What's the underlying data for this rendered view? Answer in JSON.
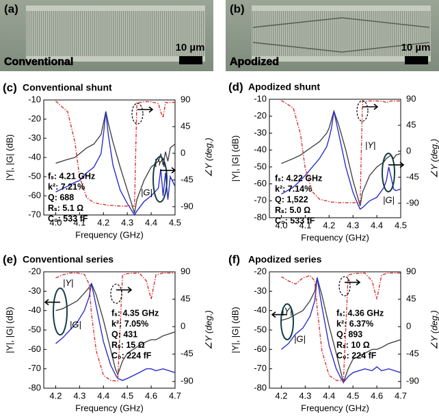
{
  "micrographs": [
    {
      "label": "(a)",
      "caption": "Conventional",
      "caption_color": "#ffffff",
      "scale_bar": "10 µm"
    },
    {
      "label": "(b)",
      "caption": "Apodized",
      "caption_color": "#e07a2a",
      "scale_bar": "10 µm"
    }
  ],
  "chart_data": [
    {
      "type": "line",
      "panel": "(c)",
      "title": "Conventional shunt",
      "title_color": "#000000",
      "xlabel": "Frequency (GHz)",
      "ylabel": "|Y|, |G| (dB)",
      "y2label": "∠Y (deg.)",
      "annotations": [
        "fₛ: 4.21 GHz",
        "k²: 7.21%",
        "Q: 688",
        "Rₛ: 5.1 Ω",
        "C₀: 533 fF"
      ],
      "annotation_color": "#000000",
      "xlim": [
        3.95,
        4.5
      ],
      "xticks": [
        {
          "value": 4,
          "label": "4.0"
        },
        4.1,
        4.2,
        4.3,
        4.4,
        4.5
      ],
      "ylim": [
        -70,
        -10
      ],
      "yticks": [
        -10,
        -20,
        -30,
        -40,
        -50,
        -60,
        -70
      ],
      "y2lim": [
        -104,
        90
      ],
      "y2ticks": [
        90,
        45,
        0,
        -45,
        -90
      ],
      "x": [
        4.0,
        4.05,
        4.08,
        4.1,
        4.13,
        4.16,
        4.19,
        4.2,
        4.21,
        4.22,
        4.24,
        4.27,
        4.3,
        4.32,
        4.33,
        4.34,
        4.37,
        4.4,
        4.43,
        4.44,
        4.45,
        4.46,
        4.47,
        4.48,
        4.5
      ],
      "series": [
        {
          "name": "|Y|",
          "color": "#444444",
          "values": [
            -43,
            -41,
            -40,
            -38,
            -35,
            -33,
            -28,
            -22,
            -16,
            -22,
            -32,
            -45,
            -57,
            -65,
            -69,
            -62,
            -52,
            -45,
            -42,
            -38,
            -44,
            -37,
            -42,
            -35,
            -33
          ]
        },
        {
          "name": "|G|",
          "color": "#2b2bcc",
          "values": [
            -58,
            -55,
            -53,
            -52,
            -48,
            -45,
            -38,
            -28,
            -16,
            -28,
            -44,
            -57,
            -64,
            -68,
            -70,
            -68,
            -63,
            -60,
            -56,
            -46,
            -60,
            -48,
            -62,
            -50,
            -55
          ]
        },
        {
          "color": "#d93030",
          "axis": "y2",
          "values": [
            88,
            70,
            20,
            -40,
            -75,
            -83,
            -86,
            -86,
            -87,
            -88,
            -88,
            -89,
            -89,
            -89,
            -89,
            85,
            87,
            87,
            84,
            70,
            60,
            86,
            85,
            86,
            86
          ]
        }
      ]
    },
    {
      "type": "line",
      "panel": "(d)",
      "title": "Apodized shunt",
      "title_color": "#c8642a",
      "xlabel": "Frequency (GHz)",
      "ylabel": "|Y|, |G| (dB)",
      "y2label": "∠Y (deg.)",
      "annotations": [
        "fₛ: 4.22 GHz",
        "k²: 7.14%",
        "Q: 1,522",
        "Rₛ: 5.0 Ω",
        "C₀: 533 fF"
      ],
      "annotation_color": "#c8642a",
      "xlim": [
        3.95,
        4.5
      ],
      "xticks": [
        {
          "value": 4,
          "label": "4.0"
        },
        4.1,
        4.2,
        4.3,
        4.4,
        4.5
      ],
      "ylim": [
        -80,
        -10
      ],
      "yticks": [
        -10,
        -20,
        -30,
        -40,
        -50,
        -60,
        -70,
        -80
      ],
      "y2lim": [
        -115,
        90
      ],
      "y2ticks": [
        90,
        45,
        0,
        -45,
        -90
      ],
      "x": [
        4.0,
        4.05,
        4.08,
        4.1,
        4.13,
        4.16,
        4.19,
        4.2,
        4.21,
        4.22,
        4.24,
        4.27,
        4.3,
        4.32,
        4.33,
        4.34,
        4.37,
        4.4,
        4.43,
        4.44,
        4.45,
        4.46,
        4.47,
        4.48,
        4.5
      ],
      "series": [
        {
          "name": "|Y|",
          "color": "#444444",
          "values": [
            -48,
            -45,
            -43,
            -41,
            -38,
            -35,
            -30,
            -27,
            -22,
            -17,
            -25,
            -40,
            -58,
            -68,
            -73,
            -65,
            -55,
            -50,
            -47,
            -45,
            -44,
            -43,
            -45,
            -43,
            -42
          ]
        },
        {
          "name": "|G|",
          "color": "#2b2bcc",
          "values": [
            -66,
            -62,
            -58,
            -55,
            -50,
            -45,
            -38,
            -33,
            -27,
            -17,
            -30,
            -50,
            -65,
            -72,
            -75,
            -74,
            -70,
            -68,
            -62,
            -58,
            -50,
            -56,
            -63,
            -64,
            -63
          ]
        },
        {
          "color": "#d93030",
          "axis": "y2",
          "values": [
            88,
            75,
            30,
            -30,
            -70,
            -83,
            -86,
            -87,
            -88,
            -88,
            -89,
            -89,
            -89,
            -89,
            -89,
            86,
            87,
            87,
            86,
            84,
            86,
            87,
            87,
            87,
            87
          ]
        }
      ]
    },
    {
      "type": "line",
      "panel": "(e)",
      "title": "Conventional series",
      "title_color": "#000000",
      "xlabel": "Frequency (GHz)",
      "ylabel": "|Y|, |G| (dB)",
      "y2label": "∠Y (deg.)",
      "annotations": [
        "fₛ: 4.35 GHz",
        "k²: 7.05%",
        "Q: 431",
        "Rₛ: 15 Ω",
        "C₀: 224 fF"
      ],
      "annotation_color": "#000000",
      "xlim": [
        4.15,
        4.7
      ],
      "xticks": [
        4.2,
        4.3,
        4.4,
        4.5,
        4.6,
        4.7
      ],
      "ylim": [
        -80,
        -20
      ],
      "yticks": [
        -20,
        -30,
        -40,
        -50,
        -60,
        -70,
        -80
      ],
      "y2lim": [
        -101,
        90
      ],
      "y2ticks": [
        90,
        45,
        0,
        -45,
        -90
      ],
      "x": [
        4.2,
        4.23,
        4.26,
        4.29,
        4.32,
        4.34,
        4.35,
        4.37,
        4.4,
        4.43,
        4.45,
        4.46,
        4.48,
        4.5,
        4.55,
        4.58,
        4.6,
        4.62,
        4.65,
        4.7
      ],
      "series": [
        {
          "name": "|Y|",
          "color": "#444444",
          "values": [
            -40,
            -39,
            -37,
            -35,
            -31,
            -28,
            -26,
            -32,
            -45,
            -60,
            -70,
            -73,
            -66,
            -62,
            -58,
            -56,
            -55,
            -55,
            -53,
            -51
          ]
        },
        {
          "name": "|G|",
          "color": "#2b2bcc",
          "values": [
            -57,
            -54,
            -50,
            -46,
            -40,
            -33,
            -26,
            -38,
            -56,
            -68,
            -73,
            -75,
            -76,
            -75,
            -72,
            -70,
            -70,
            -71,
            -70,
            -72
          ]
        },
        {
          "color": "#d93030",
          "axis": "y2",
          "values": [
            80,
            85,
            88,
            88,
            86,
            70,
            20,
            -40,
            -80,
            -88,
            -89,
            -89,
            85,
            87,
            88,
            75,
            45,
            85,
            88,
            88
          ]
        }
      ]
    },
    {
      "type": "line",
      "panel": "(f)",
      "title": "Apodized series",
      "title_color": "#c8642a",
      "xlabel": "Frequency (GHz)",
      "ylabel": "|Y|, |G| (dB)",
      "y2label": "∠Y (deg.)",
      "annotations": [
        "fₛ: 4.36 GHz",
        "k²: 6.37%",
        "Q: 893",
        "Rₛ: 10 Ω",
        "C₀: 224 fF"
      ],
      "annotation_color": "#c8642a",
      "xlim": [
        4.15,
        4.7
      ],
      "xticks": [
        4.2,
        4.3,
        4.4,
        4.5,
        4.6,
        4.7
      ],
      "ylim": [
        -80,
        -20
      ],
      "yticks": [
        -20,
        -30,
        -40,
        -50,
        -60,
        -70,
        -80
      ],
      "y2lim": [
        -101,
        90
      ],
      "y2ticks": [
        90,
        45,
        0,
        -45,
        -90
      ],
      "x": [
        4.2,
        4.23,
        4.26,
        4.29,
        4.32,
        4.34,
        4.35,
        4.37,
        4.4,
        4.43,
        4.45,
        4.46,
        4.48,
        4.5,
        4.55,
        4.58,
        4.6,
        4.62,
        4.65,
        4.7
      ],
      "series": [
        {
          "name": "|Y|",
          "color": "#444444",
          "values": [
            -45,
            -44,
            -42,
            -40,
            -35,
            -30,
            -23,
            -32,
            -48,
            -62,
            -72,
            -77,
            -70,
            -65,
            -62,
            -60,
            -60,
            -59,
            -57,
            -55
          ]
        },
        {
          "name": "|G|",
          "color": "#2b2bcc",
          "values": [
            -60,
            -57,
            -52,
            -49,
            -43,
            -35,
            -23,
            -38,
            -58,
            -70,
            -75,
            -77,
            -74,
            -72,
            -70,
            -71,
            -69,
            -71,
            -70,
            -72
          ]
        },
        {
          "color": "#d93030",
          "axis": "y2",
          "values": [
            82,
            75,
            70,
            80,
            84,
            75,
            30,
            -40,
            -80,
            -88,
            -89,
            -89,
            85,
            87,
            88,
            75,
            45,
            85,
            88,
            88
          ]
        }
      ]
    }
  ]
}
